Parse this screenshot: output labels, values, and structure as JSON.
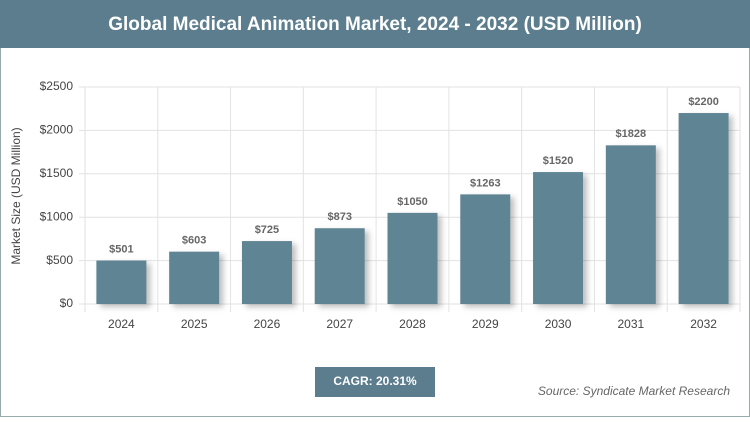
{
  "chart_data": {
    "type": "bar",
    "title": "Global Medical Animation Market, 2024 - 2032 (USD Million)",
    "y_axis_label": "Market Size (USD Million)",
    "categories": [
      "2024",
      "2025",
      "2026",
      "2027",
      "2028",
      "2029",
      "2030",
      "2031",
      "2032"
    ],
    "values": [
      501,
      603,
      725,
      873,
      1050,
      1263,
      1520,
      1828,
      2200
    ],
    "value_labels": [
      "$501",
      "$603",
      "$725",
      "$873",
      "$1050",
      "$1263",
      "$1520",
      "$1828",
      "$2200"
    ],
    "color": "#5f8494",
    "ylim": [
      0,
      2500
    ],
    "yticks": [
      {
        "value": 0,
        "label": "$0"
      },
      {
        "value": 500,
        "label": "$500"
      },
      {
        "value": 1000,
        "label": "$1000"
      },
      {
        "value": 1500,
        "label": "$1500"
      },
      {
        "value": 2000,
        "label": "$2000"
      },
      {
        "value": 2500,
        "label": "$2500"
      }
    ],
    "grid": true,
    "cagr": "CAGR: 20.31%",
    "source": "Source: Syndicate Market Research"
  }
}
